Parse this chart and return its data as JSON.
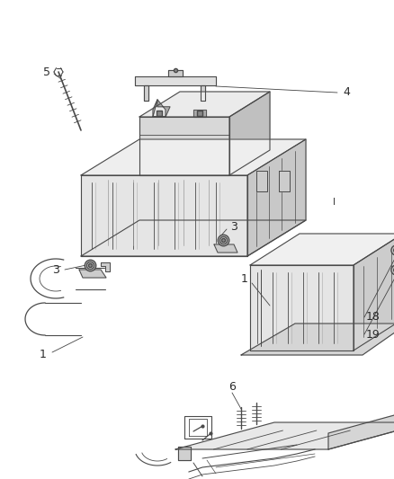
{
  "bg_color": "#ffffff",
  "line_color": "#4a4a4a",
  "label_color": "#2a2a2a",
  "figsize": [
    4.38,
    5.33
  ],
  "dpi": 100,
  "img_gamma": 0.95
}
